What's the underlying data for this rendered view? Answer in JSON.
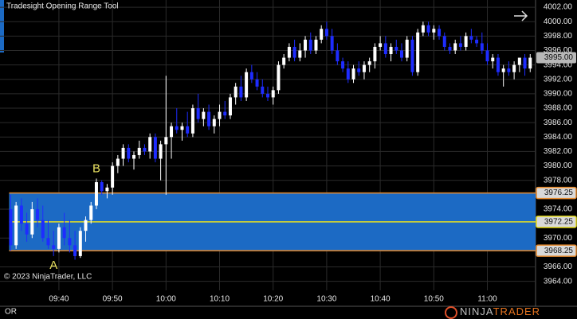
{
  "chart_data": {
    "type": "candlestick",
    "title": "Tradesight Opening Range Tool",
    "copyright": "© 2023 NinjaTrader, LLC",
    "panel_label": "OR",
    "logo": {
      "part1": "NINJA",
      "part2": "TRADER"
    },
    "up_color": "#ffffff",
    "down_color": "#1e2cff",
    "grid": true,
    "xlim": [
      "09:29",
      "11:09"
    ],
    "xticks": [
      "09:40",
      "09:50",
      "10:00",
      "10:10",
      "10:20",
      "10:30",
      "10:40",
      "10:50",
      "11:00"
    ],
    "ylim": [
      3962.75,
      4003
    ],
    "yticks": [
      {
        "value": 4002,
        "label": "4002.00"
      },
      {
        "value": 4000,
        "label": "4000.00"
      },
      {
        "value": 3998,
        "label": "3998.00"
      },
      {
        "value": 3996,
        "label": "3996.00"
      },
      {
        "value": 3994,
        "label": "3994.00"
      },
      {
        "value": 3992,
        "label": "3992.00"
      },
      {
        "value": 3990,
        "label": "3990.00"
      },
      {
        "value": 3988,
        "label": "3988.00"
      },
      {
        "value": 3986,
        "label": "3986.00"
      },
      {
        "value": 3984,
        "label": "3984.00"
      },
      {
        "value": 3982,
        "label": "3982.00"
      },
      {
        "value": 3980,
        "label": "3980.00"
      },
      {
        "value": 3978,
        "label": "3978.00"
      },
      {
        "value": 3974,
        "label": "3974.00"
      },
      {
        "value": 3970,
        "label": "3970.00"
      },
      {
        "value": 3966,
        "label": "3966.00"
      },
      {
        "value": 3964,
        "label": "3964.00"
      }
    ],
    "opening_range": {
      "high": {
        "value": 3976.25,
        "label": "3976.25"
      },
      "mid": {
        "value": 3972.25,
        "label": "3972.25"
      },
      "low": {
        "value": 3968.25,
        "label": "3968.25"
      },
      "fill": "#1c6ac4",
      "edge_color": "#e58a2e",
      "mid_color": "#e8e020"
    },
    "last_price": {
      "value": 3995,
      "label": "3995.00"
    },
    "annotations": [
      {
        "text": "A",
        "x": "09:39"
      },
      {
        "text": "B",
        "x": "09:47"
      }
    ],
    "x": [
      "09:31",
      "09:32",
      "09:33",
      "09:34",
      "09:35",
      "09:36",
      "09:37",
      "09:38",
      "09:39",
      "09:40",
      "09:41",
      "09:42",
      "09:43",
      "09:44",
      "09:45",
      "09:46",
      "09:47",
      "09:48",
      "09:49",
      "09:50",
      "09:51",
      "09:52",
      "09:53",
      "09:54",
      "09:55",
      "09:56",
      "09:57",
      "09:58",
      "09:59",
      "10:00",
      "10:01",
      "10:02",
      "10:03",
      "10:04",
      "10:05",
      "10:06",
      "10:07",
      "10:08",
      "10:09",
      "10:10",
      "10:11",
      "10:12",
      "10:13",
      "10:14",
      "10:15",
      "10:16",
      "10:17",
      "10:18",
      "10:19",
      "10:20",
      "10:21",
      "10:22",
      "10:23",
      "10:24",
      "10:25",
      "10:26",
      "10:27",
      "10:28",
      "10:29",
      "10:30",
      "10:31",
      "10:32",
      "10:33",
      "10:34",
      "10:35",
      "10:36",
      "10:37",
      "10:38",
      "10:39",
      "10:40",
      "10:41",
      "10:42",
      "10:43",
      "10:44",
      "10:45",
      "10:46",
      "10:47",
      "10:48",
      "10:49",
      "10:50",
      "10:51",
      "10:52",
      "10:53",
      "10:54",
      "10:55",
      "10:56",
      "10:57",
      "10:58",
      "10:59",
      "11:00",
      "11:01",
      "11:02",
      "11:03",
      "11:04",
      "11:05",
      "11:06",
      "11:07",
      "11:08"
    ],
    "open": [
      3974,
      3969,
      3974.5,
      3972,
      3970.5,
      3974,
      3972.5,
      3970,
      3969,
      3968.5,
      3971.5,
      3970,
      3969,
      3967.5,
      3971,
      3972.5,
      3974.5,
      3977.75,
      3976.5,
      3977,
      3980,
      3981,
      3982.5,
      3981,
      3981.5,
      3982.5,
      3982,
      3984,
      3981,
      3983,
      3984,
      3985.5,
      3985,
      3985.5,
      3984.5,
      3988,
      3986.5,
      3987.5,
      3985.5,
      3986.5,
      3987.5,
      3987,
      3989.5,
      3991,
      3989.5,
      3993,
      3992,
      3991,
      3990,
      3989.5,
      3990.5,
      3994,
      3995,
      3996.5,
      3995,
      3996,
      3997.5,
      3996,
      3997.5,
      3999,
      3998,
      3996,
      3994.5,
      3993.5,
      3992,
      3993.5,
      3993,
      3994,
      3994.5,
      3996.5,
      3997,
      3995.5,
      3996.5,
      3996,
      3995,
      3997.5,
      3993,
      3998.5,
      3999.5,
      3998.5,
      3999,
      3998,
      3996.5,
      3996,
      3997,
      3996.5,
      3998,
      3997.5,
      3997,
      3996,
      3994.5,
      3995,
      3993,
      3993.5,
      3993,
      3994,
      3995,
      3993.5
    ],
    "high": [
      3976,
      3975,
      3975.5,
      3973.5,
      3975,
      3975.5,
      3974.5,
      3972.5,
      3971,
      3972,
      3973.5,
      3972.5,
      3971,
      3971.5,
      3973,
      3975,
      3978.25,
      3978,
      3977.5,
      3980.5,
      3981.5,
      3983,
      3983,
      3982,
      3983.5,
      3983,
      3984.5,
      3984.5,
      3983.5,
      3992.5,
      3986,
      3988,
      3986,
      3987.5,
      3988.5,
      3990,
      3988,
      3988.5,
      3987,
      3988.5,
      3989,
      3990,
      3991.5,
      3992.5,
      3993.5,
      3994,
      3993,
      3992,
      3991,
      3991,
      3994.5,
      3995.5,
      3997,
      3997.5,
      3997,
      3998,
      3998.5,
      3998,
      3999.5,
      4000,
      3999,
      3997,
      3995,
      3994.5,
      3994,
      3994.5,
      3994.5,
      3995,
      3997,
      3998,
      3998,
      3997,
      3997.5,
      3997,
      3998,
      3998,
      3999,
      4000,
      4000,
      3999.5,
      3999.5,
      3998.5,
      3997,
      3997.5,
      3998,
      3998.5,
      3999,
      3998,
      3998.5,
      3997,
      3995.5,
      3995.5,
      3994,
      3994.5,
      3994.5,
      3995,
      3995.5,
      3995.5
    ],
    "low": [
      3968.25,
      3968.5,
      3971,
      3969.5,
      3970,
      3971.5,
      3969.5,
      3968.5,
      3967.5,
      3968,
      3969,
      3968,
      3967,
      3967.25,
      3969.5,
      3972,
      3974,
      3976,
      3975.5,
      3976,
      3979,
      3980,
      3980.5,
      3979.5,
      3981,
      3981.5,
      3981,
      3980.5,
      3978,
      3976,
      3981,
      3984.5,
      3983.5,
      3984,
      3984,
      3986,
      3985.5,
      3985,
      3984.5,
      3985.5,
      3986.5,
      3986.5,
      3988.5,
      3989,
      3989,
      3991.5,
      3990.5,
      3989.5,
      3989,
      3988.5,
      3990,
      3993.5,
      3994.5,
      3994.5,
      3994.5,
      3995,
      3995.5,
      3995.5,
      3997,
      3997.5,
      3995.5,
      3994,
      3993,
      3991.5,
      3991.5,
      3992.5,
      3992,
      3993,
      3993.5,
      3996,
      3995,
      3994.5,
      3995.5,
      3994.5,
      3994.5,
      3992.5,
      3992.5,
      3998,
      3998,
      3997.5,
      3997.5,
      3996,
      3995.5,
      3995.5,
      3996,
      3996,
      3997,
      3996.5,
      3995.5,
      3994,
      3993.5,
      3992.5,
      3991,
      3992.5,
      3992,
      3993,
      3992.5,
      3993
    ],
    "close": [
      3969,
      3974.5,
      3972,
      3970.5,
      3974,
      3972.5,
      3970,
      3969,
      3968.5,
      3971.5,
      3970,
      3969,
      3967.5,
      3971,
      3972.5,
      3974.5,
      3977.75,
      3976.5,
      3977,
      3980,
      3981,
      3982.5,
      3981,
      3981.5,
      3982.5,
      3982,
      3984,
      3981,
      3983,
      3984,
      3985.5,
      3985,
      3985.5,
      3984.5,
      3988,
      3986.5,
      3987.5,
      3985.5,
      3986.5,
      3987.5,
      3987,
      3989.5,
      3991,
      3989.5,
      3993,
      3992,
      3991,
      3990,
      3989.5,
      3990.5,
      3994,
      3995,
      3996.5,
      3995,
      3996,
      3997.5,
      3996,
      3997.5,
      3999,
      3998,
      3996,
      3994.5,
      3993.5,
      3992,
      3993.5,
      3993,
      3994,
      3994.5,
      3996.5,
      3997,
      3995.5,
      3996.5,
      3996,
      3995,
      3997.5,
      3993,
      3998.5,
      3999.5,
      3998.5,
      3999,
      3998,
      3996.5,
      3996,
      3997,
      3996.5,
      3998,
      3997.5,
      3997,
      3996,
      3994.5,
      3995,
      3993,
      3993.5,
      3993,
      3994,
      3995,
      3993.5,
      3995
    ]
  }
}
